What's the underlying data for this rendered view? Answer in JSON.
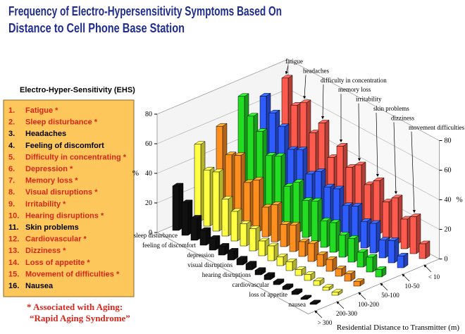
{
  "header": {
    "title": [
      "Frequency of Electro-Hypersensitivity Symptoms Based On",
      "Distance to Cell Phone Base Station"
    ]
  },
  "ehs_list": {
    "heading": "Electro-Hyper-Sensitivity (EHS)",
    "items": [
      {
        "number": "1.",
        "text": "Fatigue *",
        "aging": true
      },
      {
        "number": "2.",
        "text": "Sleep disturbance *",
        "aging": true
      },
      {
        "number": "3.",
        "text": "Headaches",
        "aging": false
      },
      {
        "number": "4.",
        "text": "Feeling of discomfort",
        "aging": false
      },
      {
        "number": "5.",
        "text": "Difficulty in concentrating *",
        "aging": true
      },
      {
        "number": "6.",
        "text": "Depression *",
        "aging": true
      },
      {
        "number": "7.",
        "text": "Memory loss *",
        "aging": true
      },
      {
        "number": "8.",
        "text": "Visual disruptions *",
        "aging": true
      },
      {
        "number": "9.",
        "text": "Irritability *",
        "aging": true
      },
      {
        "number": "10.",
        "text": "Hearing disruptions *",
        "aging": true
      },
      {
        "number": "11.",
        "text": "Skin problems",
        "aging": false
      },
      {
        "number": "12.",
        "text": "Cardiovascular *",
        "aging": true
      },
      {
        "number": "13.",
        "text": "Dizziness *",
        "aging": true
      },
      {
        "number": "14.",
        "text": "Loss of appetite *",
        "aging": true
      },
      {
        "number": "15.",
        "text": "Movement of difficulties *",
        "aging": true
      },
      {
        "number": "16.",
        "text": "Nausea",
        "aging": false
      }
    ],
    "note": [
      "* Associated with Aging:",
      "“Rapid Aging Syndrome”"
    ]
  },
  "chart_data": {
    "type": "bar3d",
    "categories": [
      "fatigue",
      "sleep disturbance",
      "headaches",
      "feeling of discomfort",
      "difficulty in concentration",
      "depression",
      "memory loss",
      "visual disruptions",
      "irritability",
      "hearing disruptions",
      "skin problems",
      "cardiovascular",
      "dizziness",
      "loss of appetite",
      "movement difficulties",
      "nausea"
    ],
    "series": [
      {
        "name": "< 10",
        "color": "#ff5a4e",
        "values": [
          72,
          57,
          62,
          45,
          55,
          35,
          46,
          35,
          40,
          30,
          36,
          25,
          31,
          20,
          25,
          10
        ]
      },
      {
        "name": "10-50",
        "color": "#2f5cff",
        "values": [
          66,
          58,
          52,
          40,
          43,
          30,
          35,
          28,
          30,
          22,
          25,
          18,
          20,
          12,
          15,
          8
        ]
      },
      {
        "name": "50-100",
        "color": "#22dd22",
        "values": [
          72,
          62,
          55,
          42,
          45,
          28,
          34,
          25,
          28,
          18,
          20,
          15,
          16,
          10,
          10,
          5
        ]
      },
      {
        "name": "100-200",
        "color": "#ff9020",
        "values": [
          58,
          42,
          45,
          30,
          35,
          20,
          25,
          15,
          18,
          10,
          12,
          8,
          8,
          5,
          5,
          3
        ]
      },
      {
        "name": "200-300",
        "color": "#ffff44",
        "values": [
          52,
          38,
          40,
          25,
          20,
          15,
          15,
          10,
          10,
          6,
          6,
          4,
          4,
          3,
          2,
          2
        ]
      },
      {
        "name": "> 300",
        "color": "#111111",
        "values": [
          30,
          22,
          15,
          10,
          8,
          6,
          6,
          4,
          4,
          3,
          3,
          2,
          2,
          2,
          1,
          1
        ]
      }
    ],
    "y_label": "%",
    "x_label": "Residential Distance to Transmitter (m)",
    "ylim": [
      0,
      80
    ],
    "yticks": [
      0,
      20,
      40,
      60,
      80
    ],
    "grid": true
  }
}
